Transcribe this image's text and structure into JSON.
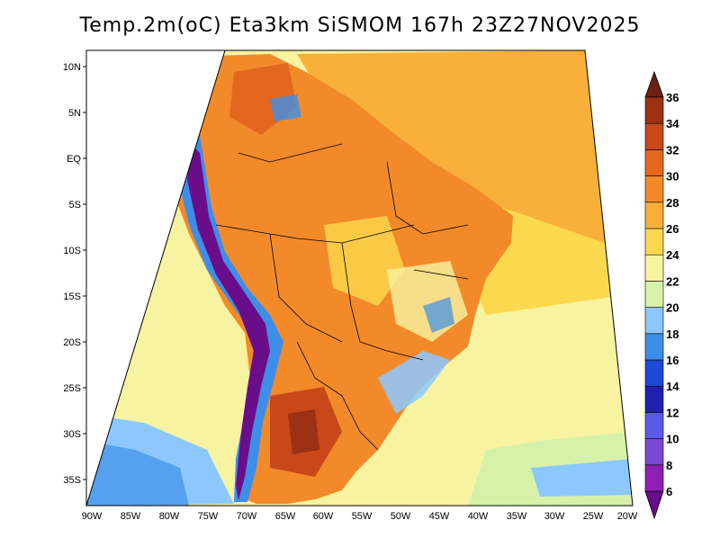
{
  "title": "Temp.2m(oC) Eta3km SiSMOM 167h 23Z27NOV2025",
  "map": {
    "lat_labels": [
      "10N",
      "5N",
      "EQ",
      "5S",
      "10S",
      "15S",
      "20S",
      "25S",
      "30S",
      "35S"
    ],
    "lon_labels": [
      "90W",
      "85W",
      "80W",
      "75W",
      "70W",
      "65W",
      "60W",
      "55W",
      "50W",
      "45W",
      "40W",
      "35W",
      "30W",
      "25W",
      "20W"
    ]
  },
  "colorbar": {
    "labels": [
      "6",
      "8",
      "10",
      "12",
      "14",
      "16",
      "18",
      "20",
      "22",
      "24",
      "26",
      "28",
      "30",
      "32",
      "34",
      "36"
    ],
    "colors": [
      "#6a0d8a",
      "#8f1fb3",
      "#7a48d4",
      "#5a5ae8",
      "#1f1fb0",
      "#1d4ad8",
      "#3d8ee8",
      "#8cc8ff",
      "#d6f2a8",
      "#f8f3a0",
      "#fbd94f",
      "#f8b03a",
      "#f38a2a",
      "#e3671f",
      "#c8481a",
      "#9c3113",
      "#6b2010"
    ],
    "unit": "oC"
  },
  "colors": {
    "ocean_warm": "#f8b03a",
    "ocean_mild": "#fbd94f",
    "ocean_cool": "#f8f3a0",
    "ocean_cold": "#8cc8ff",
    "land_hot": "#f38a2a",
    "andes_cold": "#6a0d8a"
  }
}
